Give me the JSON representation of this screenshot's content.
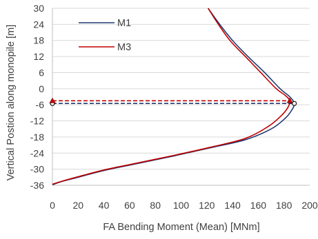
{
  "chart_data": {
    "type": "line",
    "title": "",
    "xlabel": "FA Bending Moment (Mean) [MNm]",
    "ylabel": "Vertical Postion along monopile [m]",
    "xlim": [
      0,
      200
    ],
    "ylim": [
      -36,
      30
    ],
    "x_ticks": [
      "0",
      "20",
      "40",
      "60",
      "80",
      "100",
      "120",
      "140",
      "160",
      "180",
      "200"
    ],
    "y_ticks": [
      "30",
      "24",
      "18",
      "12",
      "6",
      "0",
      "-6",
      "-12",
      "-18",
      "-24",
      "-30",
      "-36"
    ],
    "grid": "horizontal",
    "legend_position": "top-left",
    "series": [
      {
        "name": "M1",
        "color": "#1f3a70",
        "points": [
          [
            121,
            30
          ],
          [
            130,
            24
          ],
          [
            140,
            18
          ],
          [
            152,
            12
          ],
          [
            165,
            6
          ],
          [
            177,
            0
          ],
          [
            184.5,
            -3
          ],
          [
            188,
            -5.5
          ],
          [
            186,
            -8
          ],
          [
            181,
            -11
          ],
          [
            170,
            -15
          ],
          [
            150,
            -19
          ],
          [
            123,
            -22
          ],
          [
            95,
            -25
          ],
          [
            65,
            -28
          ],
          [
            40,
            -30.5
          ],
          [
            20,
            -33
          ],
          [
            8,
            -34.5
          ],
          [
            0,
            -35.8
          ]
        ],
        "peak": {
          "x": 188,
          "y": -5.5
        },
        "reference_line_y": -5.5
      },
      {
        "name": "M3",
        "color": "#c00000",
        "points": [
          [
            121,
            30
          ],
          [
            129,
            24
          ],
          [
            138,
            18
          ],
          [
            150,
            12
          ],
          [
            162,
            6
          ],
          [
            174,
            0
          ],
          [
            181,
            -2.5
          ],
          [
            184.5,
            -4.5
          ],
          [
            183,
            -7
          ],
          [
            178,
            -10
          ],
          [
            168,
            -14
          ],
          [
            150,
            -18.5
          ],
          [
            123,
            -21.8
          ],
          [
            95,
            -24.8
          ],
          [
            65,
            -27.8
          ],
          [
            40,
            -30.3
          ],
          [
            20,
            -32.8
          ],
          [
            8,
            -34.4
          ],
          [
            0,
            -35.6
          ]
        ],
        "peak": {
          "x": 184.5,
          "y": -4.5
        },
        "reference_line_y": -4.5
      }
    ]
  }
}
